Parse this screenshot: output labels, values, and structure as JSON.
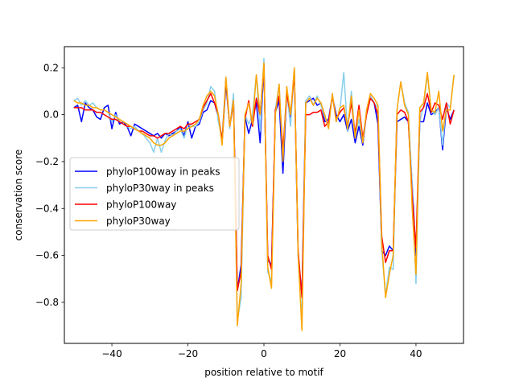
{
  "chart_data": {
    "type": "line",
    "title": "",
    "xlabel": "position relative to motif",
    "ylabel": "conservation score",
    "xlim": [
      -52.5,
      52.5
    ],
    "ylim": [
      -0.975,
      0.29
    ],
    "xticks": [
      -40,
      -20,
      0,
      20,
      40
    ],
    "yticks": [
      -0.8,
      -0.6,
      -0.4,
      -0.2,
      0.0,
      0.2
    ],
    "xtick_labels": [
      "−40",
      "−20",
      "0",
      "20",
      "40"
    ],
    "ytick_labels": [
      "−0.8",
      "−0.6",
      "−0.4",
      "−0.2",
      "0.0",
      "0.2"
    ],
    "legend_position": "center-left",
    "x": [
      -50,
      -49,
      -48,
      -47,
      -46,
      -45,
      -44,
      -43,
      -42,
      -41,
      -40,
      -39,
      -38,
      -37,
      -36,
      -35,
      -34,
      -33,
      -32,
      -31,
      -30,
      -29,
      -28,
      -27,
      -26,
      -25,
      -24,
      -23,
      -22,
      -21,
      -20,
      -19,
      -18,
      -17,
      -16,
      -15,
      -14,
      -13,
      -12,
      -11,
      -10,
      -9,
      -8,
      -7,
      -6,
      -5,
      -4,
      -3,
      -2,
      -1,
      0,
      1,
      2,
      3,
      4,
      5,
      6,
      7,
      8,
      9,
      10,
      11,
      12,
      13,
      14,
      15,
      16,
      17,
      18,
      19,
      20,
      21,
      22,
      23,
      24,
      25,
      26,
      27,
      28,
      29,
      30,
      31,
      32,
      33,
      34,
      35,
      36,
      37,
      38,
      39,
      40,
      41,
      42,
      43,
      44,
      45,
      46,
      47,
      48,
      49,
      50
    ],
    "series": [
      {
        "name": "phyloP100way in peaks",
        "color": "#0000ff",
        "values": [
          0.03,
          0.04,
          -0.03,
          0.05,
          0.03,
          0.02,
          -0.01,
          -0.02,
          0.03,
          0.04,
          -0.06,
          0.01,
          -0.04,
          -0.03,
          -0.05,
          -0.09,
          -0.04,
          -0.05,
          -0.06,
          -0.07,
          -0.08,
          -0.09,
          -0.08,
          -0.1,
          -0.08,
          -0.09,
          -0.08,
          -0.07,
          -0.05,
          -0.09,
          -0.03,
          -0.1,
          -0.05,
          -0.04,
          0.01,
          0.02,
          0.06,
          0.05,
          -0.01,
          -0.12,
          0.13,
          -0.05,
          0.05,
          -0.75,
          -0.64,
          -0.01,
          -0.08,
          -0.02,
          0.05,
          -0.12,
          0.22,
          -0.62,
          -0.64,
          0.01,
          0.06,
          -0.25,
          0.1,
          -0.01,
          0.18,
          -0.6,
          -0.77,
          0.05,
          0.06,
          0.07,
          0.04,
          0.05,
          -0.03,
          -0.02,
          0.08,
          0.0,
          -0.03,
          0.0,
          -0.07,
          -0.02,
          -0.12,
          -0.05,
          -0.13,
          0.01,
          0.08,
          0.05,
          -0.04,
          -0.58,
          -0.6,
          -0.56,
          -0.58,
          -0.03,
          -0.02,
          -0.01,
          -0.03,
          -0.3,
          -0.6,
          -0.03,
          -0.03,
          0.05,
          0.0,
          0.01,
          0.03,
          -0.15,
          0.03,
          -0.02,
          0.02
        ]
      },
      {
        "name": "phyloP30way in peaks",
        "color": "#87ceeb",
        "values": [
          0.06,
          0.07,
          0.04,
          0.06,
          0.04,
          0.05,
          0.03,
          0.02,
          0.02,
          0.01,
          -0.03,
          0.0,
          -0.03,
          -0.04,
          -0.05,
          -0.06,
          -0.05,
          -0.07,
          -0.08,
          -0.1,
          -0.12,
          -0.16,
          -0.1,
          -0.16,
          -0.11,
          -0.08,
          -0.09,
          -0.07,
          -0.06,
          -0.1,
          -0.04,
          -0.05,
          -0.05,
          -0.03,
          0.02,
          0.05,
          0.12,
          0.1,
          -0.03,
          -0.1,
          0.16,
          -0.06,
          0.09,
          -0.88,
          -0.78,
          0.0,
          -0.04,
          0.0,
          0.17,
          -0.07,
          0.24,
          -0.67,
          -0.71,
          0.02,
          0.13,
          -0.17,
          0.1,
          -0.05,
          0.2,
          -0.61,
          -0.88,
          0.06,
          0.08,
          0.04,
          0.08,
          0.04,
          -0.01,
          -0.05,
          0.09,
          -0.03,
          0.02,
          0.18,
          -0.07,
          0.1,
          -0.1,
          -0.02,
          -0.12,
          0.02,
          0.08,
          0.05,
          0.03,
          -0.58,
          -0.77,
          -0.65,
          -0.66,
          0.02,
          0.14,
          0.05,
          0.01,
          -0.3,
          -0.72,
          -0.03,
          0.04,
          0.17,
          0.02,
          0.0,
          0.03,
          -0.13,
          0.05,
          0.03,
          0.17
        ]
      },
      {
        "name": "phyloP100way",
        "color": "#ff0000",
        "values": [
          0.03,
          0.03,
          0.03,
          0.02,
          0.02,
          0.02,
          0.01,
          0.01,
          0.0,
          -0.01,
          -0.02,
          -0.02,
          -0.03,
          -0.04,
          -0.05,
          -0.05,
          -0.06,
          -0.07,
          -0.07,
          -0.08,
          -0.09,
          -0.09,
          -0.1,
          -0.09,
          -0.08,
          -0.08,
          -0.07,
          -0.06,
          -0.05,
          -0.06,
          -0.04,
          -0.04,
          -0.03,
          -0.02,
          0.03,
          0.06,
          0.09,
          0.05,
          0.0,
          -0.11,
          0.15,
          -0.05,
          0.06,
          -0.75,
          -0.67,
          -0.02,
          0.06,
          -0.05,
          0.07,
          0.0,
          0.21,
          -0.6,
          -0.66,
          0.02,
          0.08,
          -0.15,
          0.09,
          0.0,
          0.18,
          -0.58,
          -0.78,
          0.0,
          0.0,
          0.01,
          0.01,
          0.02,
          -0.05,
          -0.03,
          0.08,
          -0.02,
          0.01,
          0.03,
          -0.05,
          0.05,
          -0.08,
          0.04,
          -0.1,
          0.0,
          0.07,
          0.05,
          0.0,
          -0.52,
          -0.63,
          -0.58,
          -0.58,
          0.0,
          0.02,
          0.01,
          -0.03,
          -0.35,
          -0.57,
          0.01,
          0.03,
          0.09,
          0.01,
          0.05,
          0.04,
          -0.02,
          0.05,
          -0.04,
          0.02
        ]
      },
      {
        "name": "phyloP30way",
        "color": "#ffa500",
        "values": [
          0.06,
          0.05,
          0.05,
          0.04,
          0.04,
          0.03,
          0.03,
          0.02,
          0.02,
          0.01,
          0.0,
          -0.01,
          -0.02,
          -0.03,
          -0.04,
          -0.05,
          -0.06,
          -0.07,
          -0.08,
          -0.09,
          -0.1,
          -0.12,
          -0.13,
          -0.13,
          -0.12,
          -0.1,
          -0.09,
          -0.08,
          -0.07,
          -0.07,
          -0.06,
          -0.05,
          -0.04,
          -0.02,
          0.04,
          0.08,
          0.1,
          0.08,
          0.0,
          -0.13,
          0.16,
          -0.05,
          0.06,
          -0.9,
          -0.72,
          0.0,
          0.05,
          -0.04,
          0.17,
          0.0,
          0.22,
          -0.65,
          -0.74,
          0.0,
          0.13,
          -0.2,
          0.12,
          0.0,
          0.2,
          -0.6,
          -0.92,
          0.05,
          0.07,
          0.04,
          0.07,
          0.05,
          0.0,
          -0.06,
          0.09,
          -0.03,
          0.03,
          0.04,
          -0.06,
          0.08,
          -0.1,
          0.02,
          -0.12,
          0.02,
          0.09,
          0.07,
          0.04,
          -0.55,
          -0.78,
          -0.68,
          -0.6,
          0.02,
          0.14,
          0.04,
          0.0,
          -0.4,
          -0.68,
          0.03,
          0.05,
          0.18,
          0.02,
          0.01,
          0.1,
          -0.07,
          0.02,
          0.02,
          0.17
        ]
      }
    ]
  }
}
